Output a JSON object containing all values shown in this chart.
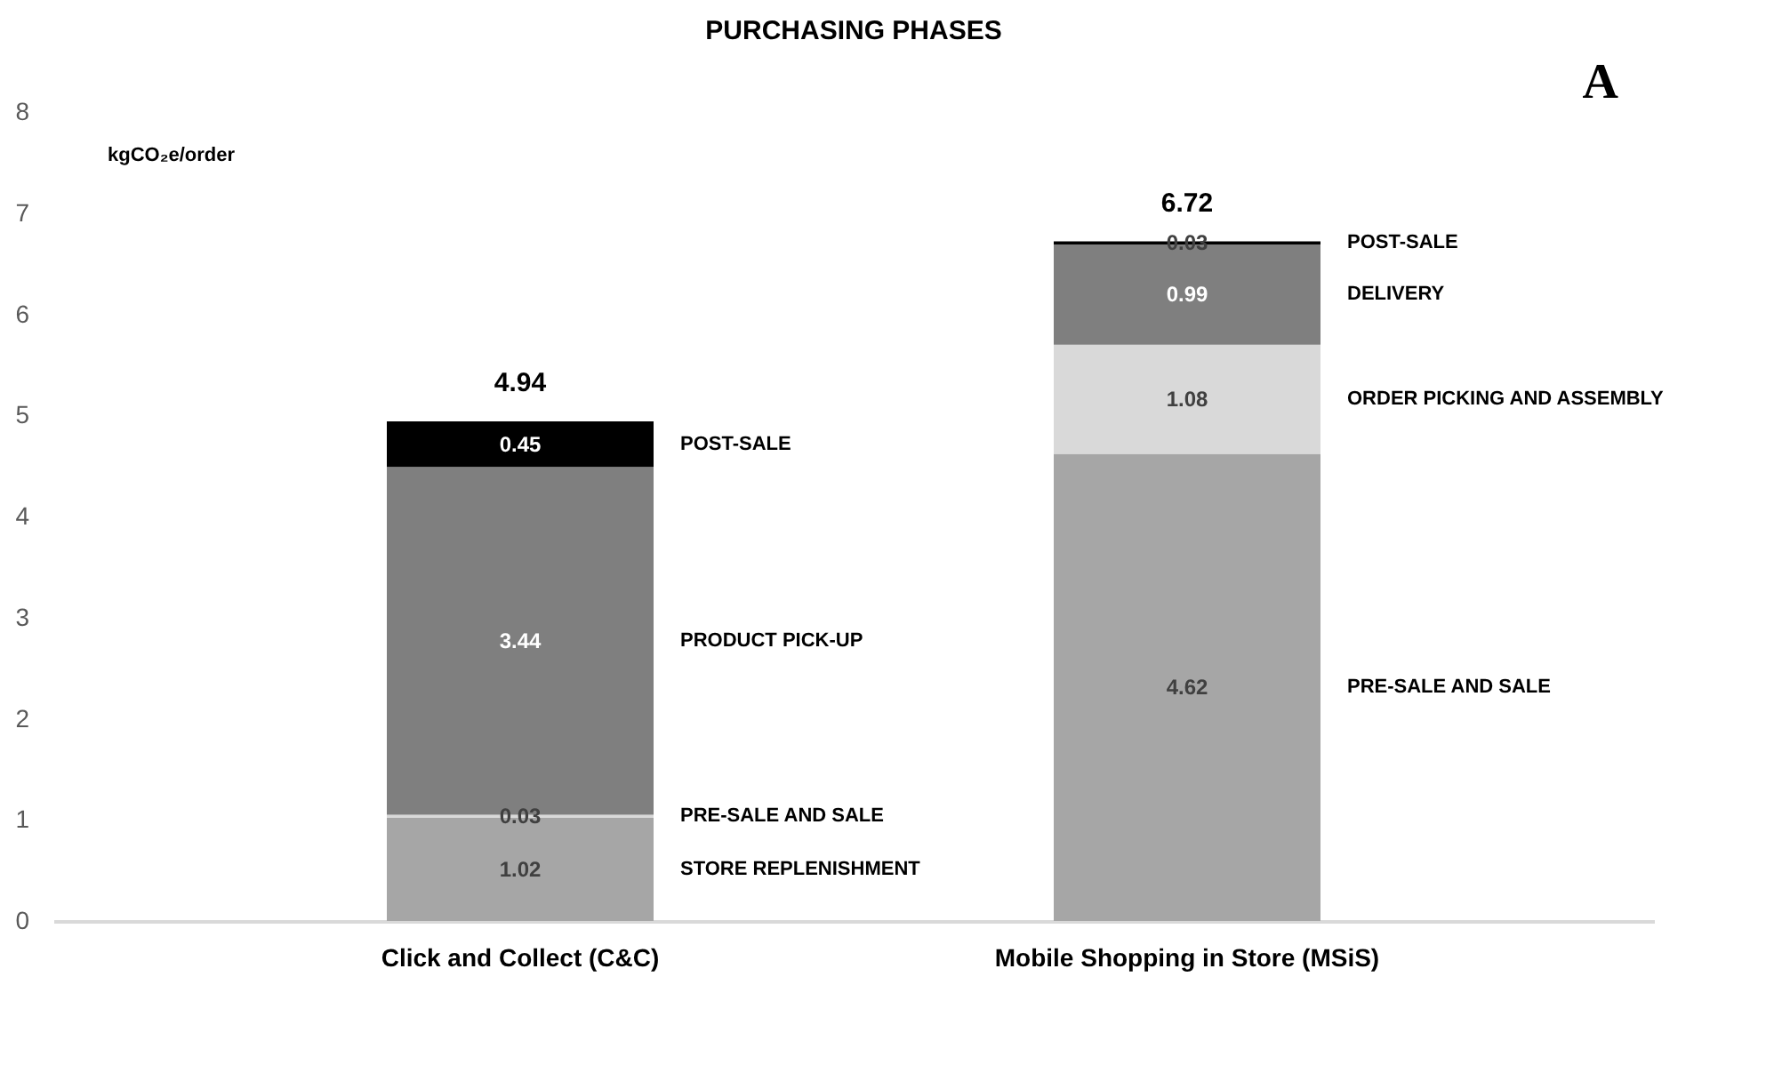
{
  "chart_data": {
    "type": "bar",
    "stacked": true,
    "title": "PURCHASING PHASES",
    "ylabel": "kgCO₂e/order",
    "categories": [
      "Click and Collect (C&C)",
      "Mobile Shopping in Store (MSiS)"
    ],
    "series": [
      {
        "name": "STORE REPLENISHMENT",
        "color": "#a6a6a6",
        "values": [
          1.02,
          null
        ]
      },
      {
        "name": "PRE-SALE AND SALE",
        "color": "#d9d9d9",
        "values": [
          0.03,
          null
        ]
      },
      {
        "name": "PRODUCT PICK-UP",
        "color": "#7f7f7f",
        "values": [
          3.44,
          null
        ]
      },
      {
        "name": "POST-SALE",
        "color": "#000000",
        "values": [
          0.45,
          null
        ]
      },
      {
        "name": "PRE-SALE AND SALE",
        "color": "#a6a6a6",
        "values": [
          null,
          4.62
        ]
      },
      {
        "name": "ORDER PICKING AND ASSEMBLY",
        "color": "#d9d9d9",
        "values": [
          null,
          1.08
        ]
      },
      {
        "name": "DELIVERY",
        "color": "#7f7f7f",
        "values": [
          null,
          0.99
        ]
      },
      {
        "name": "POST-SALE",
        "color": "#000000",
        "values": [
          null,
          0.03
        ]
      }
    ],
    "ylim": [
      0,
      8
    ],
    "yticks": [
      0,
      1,
      2,
      3,
      4,
      5,
      6,
      7,
      8
    ],
    "data_labels": true,
    "totals": [
      "4.94",
      "6.72"
    ],
    "annotations": [
      "A"
    ]
  }
}
